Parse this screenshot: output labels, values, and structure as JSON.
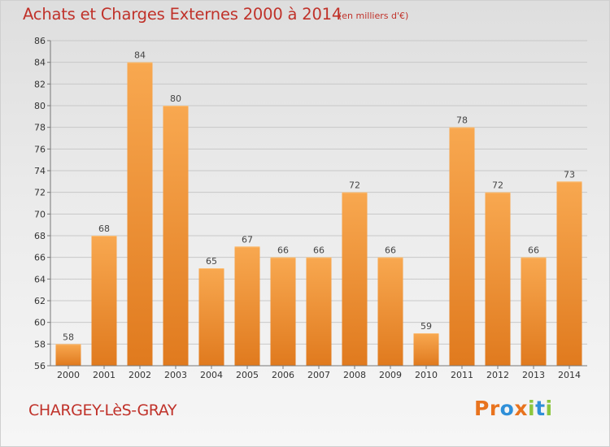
{
  "header": {
    "title": "Achats et Charges Externes 2000 à 2014",
    "unit": "(en milliers d'€)"
  },
  "footer": {
    "commune": "CHARGEY-LèS-GRAY",
    "logo_letters": [
      "P",
      "r",
      "o",
      "x",
      "i",
      "t",
      "i"
    ]
  },
  "colors": {
    "title": "#c0322a",
    "bar_light": "#f8a850",
    "bar_dark": "#e07a1e",
    "logo": [
      "#e8731e",
      "#e8731e",
      "#2f8fd8",
      "#e8731e",
      "#8cc63e",
      "#2f8fd8",
      "#8cc63e"
    ]
  },
  "chart_data": {
    "type": "bar",
    "title": "Achats et Charges Externes 2000 à 2014",
    "xlabel": "",
    "ylabel": "",
    "categories": [
      "2000",
      "2001",
      "2002",
      "2003",
      "2004",
      "2005",
      "2006",
      "2007",
      "2008",
      "2009",
      "2010",
      "2011",
      "2012",
      "2013",
      "2014"
    ],
    "values": [
      58,
      68,
      84,
      80,
      65,
      67,
      66,
      66,
      72,
      66,
      59,
      78,
      72,
      66,
      73
    ],
    "ylim": [
      56,
      86
    ],
    "yticks": [
      56,
      58,
      60,
      62,
      64,
      66,
      68,
      70,
      72,
      74,
      76,
      78,
      80,
      82,
      84,
      86
    ],
    "grid": true
  }
}
